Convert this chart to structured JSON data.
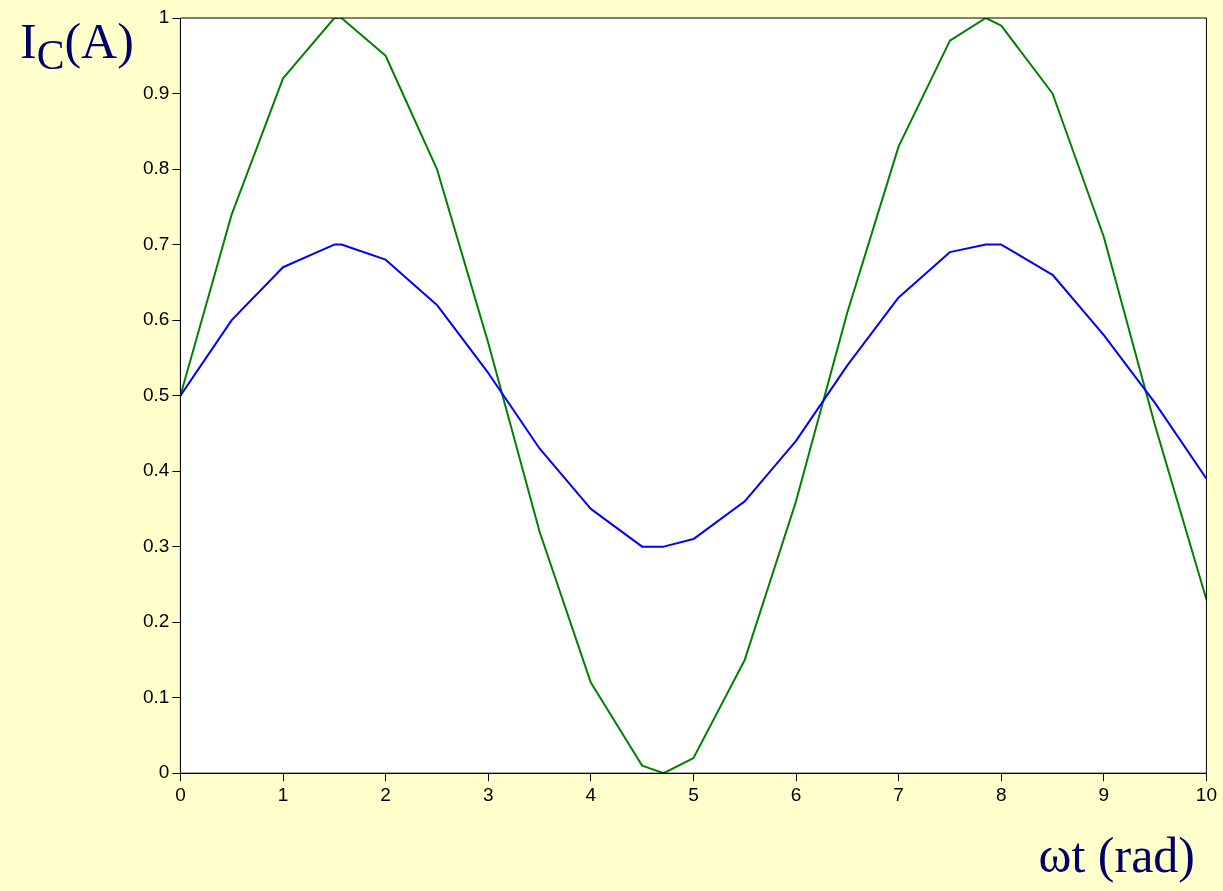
{
  "chart_data": {
    "type": "line",
    "xlabel": "ωt (rad)",
    "ylabel": "I$_{C}$(A)",
    "xlim": [
      0,
      10
    ],
    "xticks": [
      0,
      1,
      2,
      3,
      4,
      5,
      6,
      7,
      8,
      9,
      10
    ],
    "ylim": [
      0,
      1
    ],
    "yticks": [
      0,
      0.1,
      0.2,
      0.3,
      0.4,
      0.5,
      0.6,
      0.7,
      0.8,
      0.9,
      1
    ],
    "grid": false,
    "legend": false,
    "marker": "none",
    "line_style": "solid",
    "series": [
      {
        "color": "#0000ff",
        "x": [
          0,
          0.5,
          1,
          1.5,
          1.57,
          2,
          2.5,
          3,
          3.5,
          4,
          4.5,
          4.71,
          5,
          5.5,
          6,
          6.5,
          7,
          7.5,
          7.85,
          8,
          8.5,
          9,
          9.5,
          10
        ],
        "values": [
          0.5,
          0.6,
          0.67,
          0.7,
          0.7,
          0.68,
          0.62,
          0.53,
          0.43,
          0.35,
          0.3,
          0.3,
          0.31,
          0.36,
          0.44,
          0.54,
          0.63,
          0.69,
          0.7,
          0.7,
          0.66,
          0.58,
          0.49,
          0.39
        ]
      },
      {
        "color": "#008000",
        "x": [
          0,
          0.5,
          1,
          1.5,
          1.57,
          2,
          2.5,
          3,
          3.5,
          4,
          4.5,
          4.71,
          5,
          5.5,
          6,
          6.5,
          7,
          7.5,
          7.85,
          8,
          8.5,
          9,
          9.5,
          10
        ],
        "values": [
          0.5,
          0.74,
          0.92,
          1.0,
          1.0,
          0.95,
          0.8,
          0.57,
          0.32,
          0.12,
          0.01,
          0,
          0.02,
          0.15,
          0.36,
          0.61,
          0.83,
          0.97,
          1,
          0.99,
          0.9,
          0.71,
          0.46,
          0.23
        ]
      }
    ]
  }
}
